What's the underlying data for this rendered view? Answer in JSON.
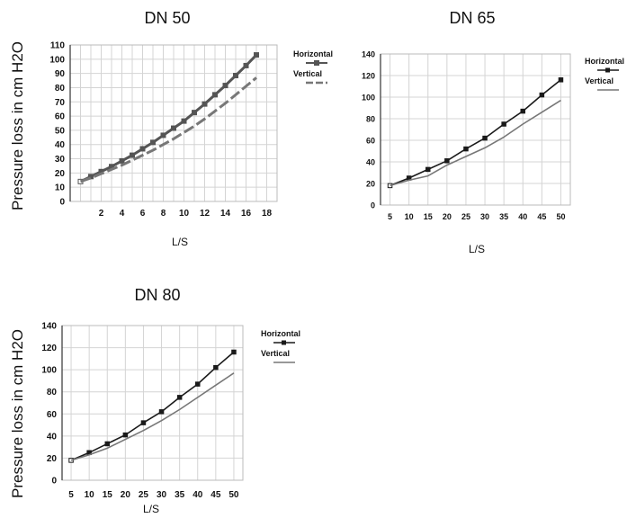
{
  "ylabel": "Pressure loss in cm H2O",
  "chart_data": [
    {
      "type": "line",
      "title": "DN 50",
      "xlabel": "L/S",
      "ylabel": "Pressure loss in cm H2O",
      "x": [
        0,
        1,
        2,
        3,
        4,
        5,
        6,
        7,
        8,
        9,
        10,
        11,
        12,
        13,
        14,
        15,
        16,
        17,
        18
      ],
      "xticks": [
        2,
        4,
        6,
        8,
        10,
        12,
        14,
        16,
        18
      ],
      "yticks": [
        0,
        10,
        20,
        30,
        40,
        50,
        60,
        70,
        80,
        90,
        100,
        110
      ],
      "xlim": [
        -1,
        19
      ],
      "ylim": [
        0,
        110
      ],
      "grid": true,
      "legend": "top-right",
      "series": [
        {
          "name": "Horizontal",
          "color": "#555555",
          "marker": "square",
          "values": [
            14,
            17.5,
            21,
            24.5,
            28.5,
            32.5,
            37,
            41.5,
            46.5,
            51.5,
            56.5,
            62.5,
            68.5,
            75,
            81.5,
            88.5,
            95.5,
            103,
            null
          ]
        },
        {
          "name": "Vertical",
          "color": "#777777",
          "dashed": true,
          "values": [
            14,
            16.5,
            19.5,
            22.5,
            25.5,
            29,
            32.5,
            36,
            40,
            44,
            48.5,
            53,
            58,
            63.5,
            69,
            75,
            81,
            87,
            null
          ]
        }
      ]
    },
    {
      "type": "line",
      "title": "DN 65",
      "xlabel": "L/S",
      "x": [
        5,
        10,
        15,
        20,
        25,
        30,
        35,
        40,
        45,
        50
      ],
      "xticks": [
        5,
        10,
        15,
        20,
        25,
        30,
        35,
        40,
        45,
        50
      ],
      "yticks": [
        0,
        20,
        40,
        60,
        80,
        100,
        120,
        140
      ],
      "xlim": [
        2.5,
        52.5
      ],
      "ylim": [
        0,
        140
      ],
      "grid": true,
      "legend": "top-right",
      "series": [
        {
          "name": "Horizontal",
          "color": "#1a1a1a",
          "marker": "square",
          "values": [
            18,
            25,
            33,
            41,
            52,
            62,
            75,
            87,
            102,
            116
          ]
        },
        {
          "name": "Vertical",
          "color": "#777777",
          "values": [
            18,
            23,
            27,
            37,
            45,
            53,
            63,
            75,
            86,
            97
          ]
        }
      ]
    },
    {
      "type": "line",
      "title": "DN 80",
      "xlabel": "L/S",
      "ylabel": "Pressure loss in cm H2O",
      "x": [
        5,
        10,
        15,
        20,
        25,
        30,
        35,
        40,
        45,
        50
      ],
      "xticks": [
        5,
        10,
        15,
        20,
        25,
        30,
        35,
        40,
        45,
        50
      ],
      "yticks": [
        0,
        20,
        40,
        60,
        80,
        100,
        120,
        140
      ],
      "xlim": [
        2.5,
        52.5
      ],
      "ylim": [
        0,
        140
      ],
      "grid": true,
      "legend": "top-right",
      "series": [
        {
          "name": "Horizontal",
          "color": "#1a1a1a",
          "marker": "square",
          "values": [
            18,
            25,
            33,
            41,
            52,
            62,
            75,
            87,
            102,
            116
          ]
        },
        {
          "name": "Vertical",
          "color": "#777777",
          "values": [
            18,
            23,
            29,
            37,
            45,
            54,
            64,
            75,
            86,
            97
          ]
        }
      ]
    }
  ]
}
